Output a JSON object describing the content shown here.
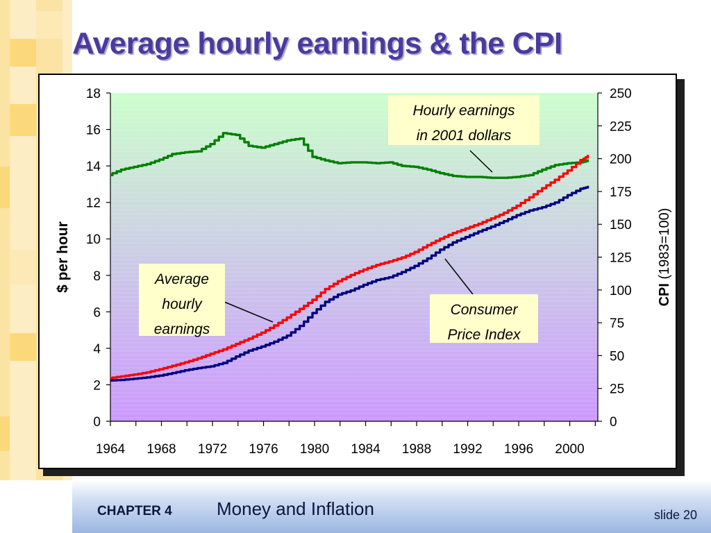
{
  "slide": {
    "title": "Average hourly earnings & the CPI",
    "chapter": "CHAPTER 4",
    "topic": "Money and Inflation",
    "slide_number": "slide 20"
  },
  "colors": {
    "title": "#4b3a9e",
    "hourly_earnings_real": "#008000",
    "average_hourly_earnings": "#ff0000",
    "consumer_price_index": "#000080",
    "callout_fill": "#ffffcc",
    "deco_gold": "#fbd97a"
  },
  "chart_data": {
    "type": "line",
    "x": [
      1964,
      1965,
      1966,
      1967,
      1968,
      1969,
      1970,
      1971,
      1972,
      1973,
      1974,
      1975,
      1976,
      1977,
      1978,
      1979,
      1980,
      1981,
      1982,
      1983,
      1984,
      1985,
      1986,
      1987,
      1988,
      1989,
      1990,
      1991,
      1992,
      1993,
      1994,
      1995,
      1996,
      1997,
      1998,
      1999,
      2000,
      2001,
      2001.5
    ],
    "xticks": [
      1964,
      1968,
      1972,
      1976,
      1980,
      1984,
      1988,
      1992,
      1996,
      2000
    ],
    "xlim": [
      1964,
      2002.2
    ],
    "left_axis": {
      "label": "$ per hour",
      "ylim": [
        0,
        18
      ],
      "ticks": [
        0,
        2,
        4,
        6,
        8,
        10,
        12,
        14,
        16,
        18
      ]
    },
    "right_axis": {
      "label_bold": "CPI",
      "label_rest": "(1983=100)",
      "ylim": [
        0,
        250
      ],
      "ticks": [
        0,
        25,
        50,
        75,
        100,
        125,
        150,
        175,
        200,
        225,
        250
      ]
    },
    "background_gradient": [
      "#ccffcc",
      "#cc99ff"
    ],
    "series": [
      {
        "name": "Hourly earnings in 2001 dollars",
        "axis": "left",
        "color": "#008000",
        "values": [
          13.5,
          13.8,
          13.95,
          14.1,
          14.35,
          14.65,
          14.75,
          14.8,
          15.2,
          15.8,
          15.7,
          15.1,
          15.0,
          15.2,
          15.4,
          15.5,
          14.5,
          14.3,
          14.15,
          14.2,
          14.2,
          14.15,
          14.2,
          14.0,
          13.95,
          13.8,
          13.6,
          13.45,
          13.4,
          13.4,
          13.35,
          13.35,
          13.4,
          13.5,
          13.8,
          14.05,
          14.15,
          14.2,
          14.3
        ]
      },
      {
        "name": "Average hourly earnings",
        "axis": "left",
        "color": "#ff0000",
        "values": [
          2.36,
          2.46,
          2.56,
          2.68,
          2.85,
          3.04,
          3.23,
          3.45,
          3.7,
          3.94,
          4.24,
          4.53,
          4.86,
          5.25,
          5.69,
          6.16,
          6.66,
          7.25,
          7.68,
          8.02,
          8.32,
          8.57,
          8.76,
          8.98,
          9.28,
          9.66,
          10.01,
          10.32,
          10.57,
          10.83,
          11.12,
          11.43,
          11.82,
          12.28,
          12.78,
          13.24,
          13.75,
          14.32,
          14.55
        ]
      },
      {
        "name": "Consumer Price Index",
        "axis": "right",
        "color": "#000080",
        "values": [
          31.0,
          31.5,
          32.4,
          33.4,
          34.8,
          36.7,
          38.8,
          40.5,
          41.8,
          44.4,
          49.3,
          53.8,
          56.9,
          60.6,
          65.2,
          72.6,
          82.4,
          90.9,
          96.5,
          99.6,
          103.9,
          107.6,
          109.6,
          113.6,
          118.3,
          124.0,
          130.7,
          136.2,
          140.3,
          144.5,
          148.2,
          152.4,
          156.9,
          160.5,
          163.0,
          166.6,
          172.2,
          177.1,
          178.5
        ]
      }
    ],
    "annotations": [
      {
        "name": "hourly-earnings-2001",
        "lines": [
          "Hourly earnings",
          "in 2001 dollars"
        ],
        "points_to": "Hourly earnings in 2001 dollars"
      },
      {
        "name": "average-hourly-earnings",
        "lines": [
          "Average",
          "hourly",
          "earnings"
        ],
        "points_to": "Average hourly earnings"
      },
      {
        "name": "consumer-price-index",
        "lines": [
          "Consumer",
          "Price Index"
        ],
        "points_to": "Consumer Price Index"
      }
    ]
  }
}
